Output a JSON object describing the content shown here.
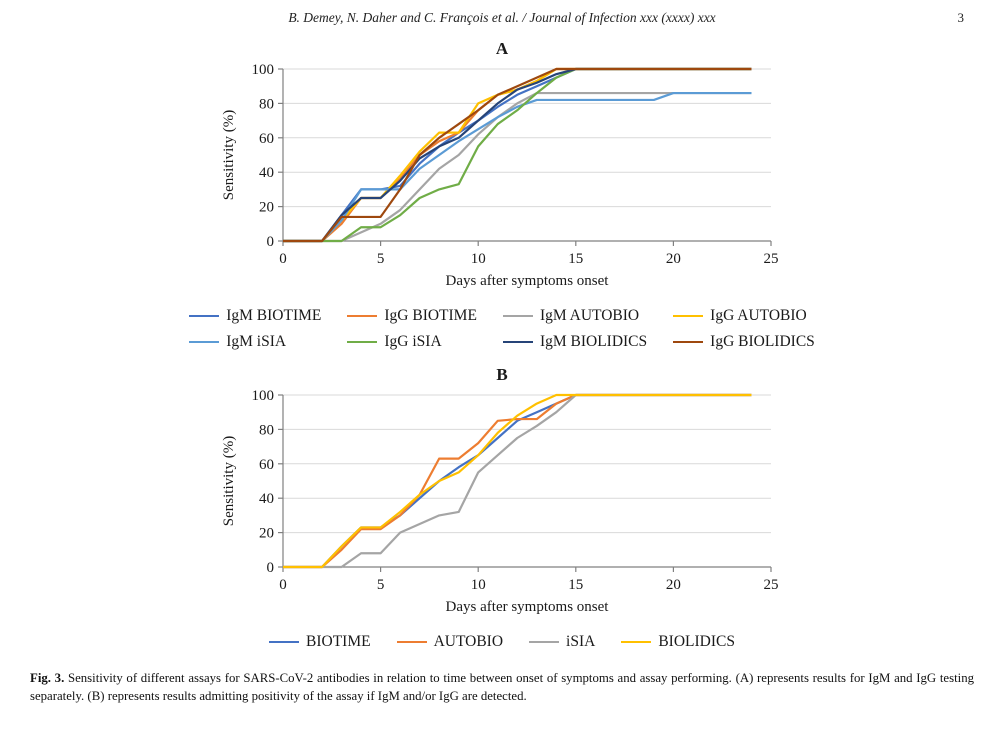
{
  "page": {
    "header": "B. Demey, N. Daher and C. François et al. / Journal of Infection xxx (xxxx) xxx",
    "page_number": "3",
    "caption_label": "Fig. 3.",
    "caption_text": "Sensitivity of different assays for SARS-CoV-2 antibodies in relation to time between onset of symptoms and assay performing. (A) represents results for IgM and IgG testing separately. (B) represents results admitting positivity of the assay if IgM and/or IgG are detected."
  },
  "chart_data": [
    {
      "type": "line",
      "title": "A",
      "xlabel": "Days after symptoms onset",
      "ylabel": "Sensitivity (%)",
      "xlim": [
        0,
        25
      ],
      "ylim": [
        0,
        100
      ],
      "xticks": [
        0,
        5,
        10,
        15,
        20,
        25
      ],
      "yticks": [
        0,
        20,
        40,
        60,
        80,
        100
      ],
      "grid": true,
      "legend_position": "bottom",
      "series": [
        {
          "name": "IgM BIOTIME",
          "color": "#4472C4",
          "x": [
            0,
            2,
            3,
            4,
            5,
            6,
            7,
            8,
            9,
            10,
            11,
            12,
            13,
            14,
            15,
            24
          ],
          "y": [
            0,
            0,
            15,
            30,
            30,
            32,
            45,
            55,
            63,
            70,
            78,
            85,
            90,
            95,
            100,
            100
          ]
        },
        {
          "name": "IgG BIOTIME",
          "color": "#ED7D31",
          "x": [
            0,
            2,
            3,
            4,
            5,
            6,
            7,
            8,
            9,
            10,
            11,
            12,
            13,
            14,
            24
          ],
          "y": [
            0,
            0,
            10,
            25,
            25,
            36,
            50,
            58,
            63,
            76,
            85,
            88,
            93,
            100,
            100
          ]
        },
        {
          "name": "IgM AUTOBIO",
          "color": "#A5A5A5",
          "x": [
            0,
            3,
            4,
            5,
            6,
            7,
            8,
            9,
            10,
            11,
            12,
            13,
            24
          ],
          "y": [
            0,
            0,
            5,
            10,
            18,
            30,
            42,
            50,
            62,
            72,
            80,
            86,
            86
          ]
        },
        {
          "name": "IgG AUTOBIO",
          "color": "#FFC000",
          "x": [
            0,
            2,
            3,
            4,
            5,
            6,
            7,
            8,
            9,
            10,
            11,
            12,
            13,
            14,
            24
          ],
          "y": [
            0,
            0,
            12,
            25,
            25,
            38,
            52,
            63,
            63,
            80,
            85,
            88,
            93,
            100,
            100
          ]
        },
        {
          "name": "IgM iSIA",
          "color": "#5B9BD5",
          "x": [
            0,
            2,
            3,
            4,
            5,
            6,
            7,
            8,
            9,
            10,
            11,
            12,
            13,
            19,
            20,
            24
          ],
          "y": [
            0,
            0,
            12,
            30,
            30,
            30,
            42,
            50,
            58,
            65,
            72,
            78,
            82,
            82,
            86,
            86
          ]
        },
        {
          "name": "IgG iSIA",
          "color": "#70AD47",
          "x": [
            0,
            3,
            4,
            5,
            6,
            7,
            8,
            9,
            10,
            11,
            12,
            13,
            14,
            15,
            24
          ],
          "y": [
            0,
            0,
            8,
            8,
            15,
            25,
            30,
            33,
            55,
            68,
            76,
            86,
            95,
            100,
            100
          ]
        },
        {
          "name": "IgM BIOLIDICS",
          "color": "#264478",
          "x": [
            0,
            2,
            3,
            4,
            5,
            6,
            7,
            8,
            9,
            10,
            11,
            12,
            13,
            14,
            15,
            24
          ],
          "y": [
            0,
            0,
            15,
            25,
            25,
            35,
            48,
            55,
            60,
            70,
            80,
            88,
            92,
            97,
            100,
            100
          ]
        },
        {
          "name": "IgG BIOLIDICS",
          "color": "#9E480E",
          "x": [
            0,
            2,
            3,
            4,
            5,
            6,
            7,
            8,
            9,
            10,
            11,
            12,
            13,
            14,
            24
          ],
          "y": [
            0,
            0,
            14,
            14,
            14,
            30,
            50,
            60,
            68,
            76,
            85,
            90,
            95,
            100,
            100
          ]
        }
      ]
    },
    {
      "type": "line",
      "title": "B",
      "xlabel": "Days after symptoms onset",
      "ylabel": "Sensitivity (%)",
      "xlim": [
        0,
        25
      ],
      "ylim": [
        0,
        100
      ],
      "xticks": [
        0,
        5,
        10,
        15,
        20,
        25
      ],
      "yticks": [
        0,
        20,
        40,
        60,
        80,
        100
      ],
      "grid": true,
      "legend_position": "bottom",
      "series": [
        {
          "name": "BIOTIME",
          "color": "#4472C4",
          "x": [
            0,
            2,
            3,
            4,
            5,
            6,
            7,
            8,
            9,
            10,
            11,
            12,
            13,
            14,
            15,
            24
          ],
          "y": [
            0,
            0,
            12,
            23,
            23,
            30,
            40,
            50,
            58,
            65,
            75,
            85,
            90,
            95,
            100,
            100
          ]
        },
        {
          "name": "AUTOBIO",
          "color": "#ED7D31",
          "x": [
            0,
            2,
            3,
            4,
            5,
            6,
            7,
            8,
            9,
            10,
            11,
            12,
            13,
            14,
            15,
            24
          ],
          "y": [
            0,
            0,
            10,
            22,
            22,
            30,
            42,
            63,
            63,
            72,
            85,
            86,
            86,
            95,
            100,
            100
          ]
        },
        {
          "name": "iSIA",
          "color": "#A5A5A5",
          "x": [
            0,
            3,
            4,
            5,
            6,
            7,
            8,
            9,
            10,
            11,
            12,
            13,
            14,
            15,
            24
          ],
          "y": [
            0,
            0,
            8,
            8,
            20,
            25,
            30,
            32,
            55,
            65,
            75,
            82,
            90,
            100,
            100
          ]
        },
        {
          "name": "BIOLIDICS",
          "color": "#FFC000",
          "x": [
            0,
            2,
            3,
            4,
            5,
            6,
            7,
            8,
            9,
            10,
            11,
            12,
            13,
            14,
            24
          ],
          "y": [
            0,
            0,
            12,
            23,
            23,
            32,
            42,
            50,
            55,
            65,
            78,
            88,
            95,
            100,
            100
          ]
        }
      ]
    }
  ]
}
